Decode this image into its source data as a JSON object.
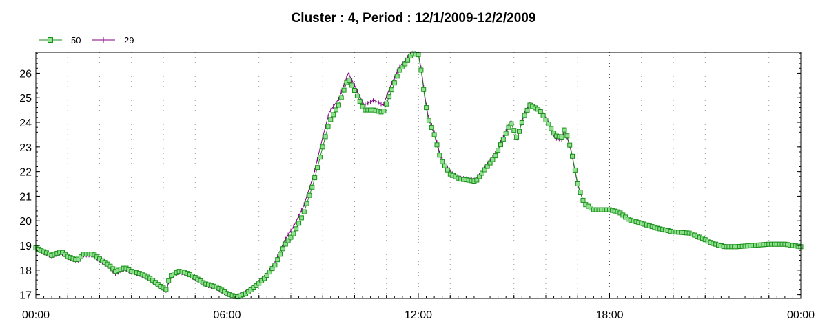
{
  "chart_data": {
    "type": "line",
    "title": "Cluster : 4, Period : 12/1/2009-12/2/2009",
    "xlabel": "",
    "ylabel": "",
    "x_range_hours": [
      0,
      24
    ],
    "ylim": [
      16.85,
      26.85
    ],
    "y_ticks": [
      17,
      18,
      19,
      20,
      21,
      22,
      23,
      24,
      25,
      26
    ],
    "x_ticks": [
      {
        "hour": 0,
        "label": "00:00"
      },
      {
        "hour": 6,
        "label": "06:00"
      },
      {
        "hour": 12,
        "label": "12:00"
      },
      {
        "hour": 18,
        "label": "18:00"
      },
      {
        "hour": 24,
        "label": "00:00"
      }
    ],
    "grid": "dotted, vertical every hour",
    "legend_position": "top-left",
    "series": [
      {
        "name": "50",
        "color": "#1a8f1a",
        "marker": "square",
        "marker_fill": "#8fe08f",
        "points": [
          [
            0.0,
            18.9
          ],
          [
            0.5,
            18.6
          ],
          [
            0.8,
            18.75
          ],
          [
            1.0,
            18.55
          ],
          [
            1.3,
            18.4
          ],
          [
            1.5,
            18.65
          ],
          [
            1.8,
            18.65
          ],
          [
            2.0,
            18.45
          ],
          [
            2.3,
            18.2
          ],
          [
            2.5,
            17.95
          ],
          [
            2.8,
            18.1
          ],
          [
            3.0,
            17.95
          ],
          [
            3.3,
            17.85
          ],
          [
            3.6,
            17.65
          ],
          [
            3.9,
            17.35
          ],
          [
            4.1,
            17.2
          ],
          [
            4.2,
            17.75
          ],
          [
            4.5,
            17.95
          ],
          [
            4.7,
            17.9
          ],
          [
            5.0,
            17.7
          ],
          [
            5.3,
            17.45
          ],
          [
            5.7,
            17.3
          ],
          [
            6.0,
            17.05
          ],
          [
            6.3,
            16.9
          ],
          [
            6.6,
            17.05
          ],
          [
            6.9,
            17.35
          ],
          [
            7.2,
            17.7
          ],
          [
            7.5,
            18.2
          ],
          [
            7.8,
            19.0
          ],
          [
            8.1,
            19.5
          ],
          [
            8.4,
            20.3
          ],
          [
            8.7,
            21.5
          ],
          [
            9.0,
            23.0
          ],
          [
            9.2,
            24.0
          ],
          [
            9.5,
            24.7
          ],
          [
            9.8,
            25.8
          ],
          [
            10.0,
            25.3
          ],
          [
            10.3,
            24.5
          ],
          [
            10.6,
            24.5
          ],
          [
            10.9,
            24.4
          ],
          [
            11.1,
            25.1
          ],
          [
            11.4,
            26.1
          ],
          [
            11.6,
            26.4
          ],
          [
            11.8,
            26.8
          ],
          [
            12.0,
            26.75
          ],
          [
            12.1,
            26.0
          ],
          [
            12.2,
            25.0
          ],
          [
            12.3,
            24.2
          ],
          [
            12.5,
            23.5
          ],
          [
            12.7,
            22.5
          ],
          [
            13.0,
            21.9
          ],
          [
            13.3,
            21.7
          ],
          [
            13.6,
            21.65
          ],
          [
            13.8,
            21.6
          ],
          [
            14.1,
            22.1
          ],
          [
            14.4,
            22.6
          ],
          [
            14.7,
            23.4
          ],
          [
            14.9,
            24.0
          ],
          [
            15.1,
            23.35
          ],
          [
            15.3,
            24.2
          ],
          [
            15.5,
            24.7
          ],
          [
            15.8,
            24.5
          ],
          [
            16.1,
            23.9
          ],
          [
            16.3,
            23.45
          ],
          [
            16.5,
            23.4
          ],
          [
            16.6,
            23.75
          ],
          [
            16.8,
            22.85
          ],
          [
            17.0,
            21.5
          ],
          [
            17.2,
            20.7
          ],
          [
            17.5,
            20.45
          ],
          [
            18.0,
            20.45
          ],
          [
            18.3,
            20.35
          ],
          [
            18.6,
            20.05
          ],
          [
            19.0,
            19.9
          ],
          [
            19.5,
            19.7
          ],
          [
            20.0,
            19.55
          ],
          [
            20.5,
            19.5
          ],
          [
            20.9,
            19.3
          ],
          [
            21.2,
            19.1
          ],
          [
            21.6,
            18.95
          ],
          [
            22.0,
            18.95
          ],
          [
            22.5,
            19.0
          ],
          [
            23.0,
            19.05
          ],
          [
            23.5,
            19.05
          ],
          [
            24.0,
            18.95
          ]
        ]
      },
      {
        "name": "29",
        "color": "#800080",
        "marker": "plus",
        "points": [
          [
            0.0,
            18.85
          ],
          [
            0.5,
            18.55
          ],
          [
            0.8,
            18.7
          ],
          [
            1.0,
            18.5
          ],
          [
            1.3,
            18.35
          ],
          [
            1.5,
            18.6
          ],
          [
            1.8,
            18.6
          ],
          [
            2.0,
            18.4
          ],
          [
            2.3,
            18.1
          ],
          [
            2.5,
            17.85
          ],
          [
            2.8,
            18.05
          ],
          [
            3.0,
            17.9
          ],
          [
            3.3,
            17.8
          ],
          [
            3.6,
            17.6
          ],
          [
            3.9,
            17.3
          ],
          [
            4.1,
            17.15
          ],
          [
            4.2,
            17.7
          ],
          [
            4.5,
            17.9
          ],
          [
            4.7,
            17.85
          ],
          [
            5.0,
            17.65
          ],
          [
            5.3,
            17.4
          ],
          [
            5.7,
            17.25
          ],
          [
            6.0,
            17.0
          ],
          [
            6.3,
            16.95
          ],
          [
            6.6,
            17.1
          ],
          [
            6.9,
            17.4
          ],
          [
            7.2,
            17.75
          ],
          [
            7.5,
            18.3
          ],
          [
            7.8,
            19.2
          ],
          [
            8.1,
            19.8
          ],
          [
            8.4,
            20.6
          ],
          [
            8.7,
            21.8
          ],
          [
            9.0,
            23.4
          ],
          [
            9.2,
            24.4
          ],
          [
            9.5,
            24.95
          ],
          [
            9.8,
            26.0
          ],
          [
            10.0,
            25.5
          ],
          [
            10.3,
            24.7
          ],
          [
            10.6,
            24.9
          ],
          [
            10.9,
            24.7
          ],
          [
            11.1,
            25.4
          ],
          [
            11.4,
            26.25
          ],
          [
            11.6,
            26.55
          ],
          [
            11.8,
            26.85
          ],
          [
            12.0,
            26.8
          ],
          [
            12.1,
            26.1
          ],
          [
            12.2,
            25.1
          ],
          [
            12.3,
            24.3
          ],
          [
            12.5,
            23.6
          ],
          [
            12.7,
            22.6
          ],
          [
            13.0,
            22.0
          ],
          [
            13.3,
            21.75
          ],
          [
            13.6,
            21.7
          ],
          [
            13.8,
            21.65
          ],
          [
            14.1,
            22.2
          ],
          [
            14.4,
            22.7
          ],
          [
            14.7,
            23.5
          ],
          [
            14.9,
            24.05
          ],
          [
            15.1,
            23.3
          ],
          [
            15.3,
            24.3
          ],
          [
            15.5,
            24.75
          ],
          [
            15.8,
            24.55
          ],
          [
            16.1,
            23.95
          ],
          [
            16.3,
            23.35
          ],
          [
            16.5,
            23.3
          ],
          [
            16.6,
            23.7
          ],
          [
            16.8,
            22.8
          ],
          [
            17.0,
            21.45
          ],
          [
            17.2,
            20.7
          ],
          [
            17.5,
            20.45
          ],
          [
            18.0,
            20.45
          ],
          [
            18.3,
            20.35
          ],
          [
            18.6,
            20.05
          ],
          [
            19.0,
            19.9
          ],
          [
            19.5,
            19.7
          ],
          [
            20.0,
            19.55
          ],
          [
            20.5,
            19.5
          ],
          [
            20.9,
            19.3
          ],
          [
            21.2,
            19.1
          ],
          [
            21.6,
            18.95
          ],
          [
            22.0,
            18.95
          ],
          [
            22.5,
            19.0
          ],
          [
            23.0,
            19.05
          ],
          [
            23.5,
            19.05
          ],
          [
            24.0,
            18.95
          ]
        ]
      }
    ]
  }
}
